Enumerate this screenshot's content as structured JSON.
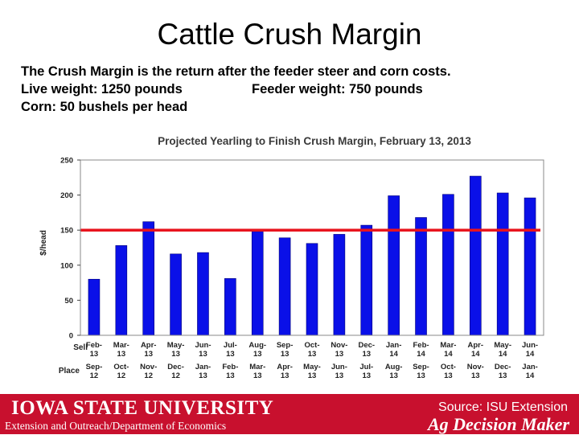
{
  "slide": {
    "title": "Cattle Crush Margin",
    "description_line1": "The Crush Margin is the return after the feeder steer and corn costs.",
    "description_live_weight": "Live weight:  1250 pounds",
    "description_feeder_weight": "Feeder weight:  750 pounds",
    "description_line3": "Corn:  50 bushels per head"
  },
  "chart_data": {
    "type": "bar",
    "title": "Projected Yearling to Finish Crush Margin, February 13, 2013",
    "ylabel": "$/head",
    "ylim": [
      0,
      250
    ],
    "yticks": [
      0,
      50,
      100,
      150,
      200,
      250
    ],
    "reference_line": 150,
    "row_labels": [
      "Sell",
      "Place"
    ],
    "categories": [
      "Feb-13",
      "Mar-13",
      "Apr-13",
      "May-13",
      "Jun-13",
      "Jul-13",
      "Aug-13",
      "Sep-13",
      "Oct-13",
      "Nov-13",
      "Dec-13",
      "Jan-14",
      "Feb-14",
      "Mar-14",
      "Apr-14",
      "May-14",
      "Jun-14"
    ],
    "place_categories": [
      "Sep-12",
      "Oct-12",
      "Nov-12",
      "Dec-12",
      "Jan-13",
      "Feb-13",
      "Mar-13",
      "Apr-13",
      "May-13",
      "Jun-13",
      "Jul-13",
      "Aug-13",
      "Sep-13",
      "Oct-13",
      "Nov-13",
      "Dec-13",
      "Jan-14"
    ],
    "values": [
      80,
      128,
      162,
      116,
      118,
      81,
      148,
      139,
      131,
      144,
      157,
      199,
      168,
      201,
      227,
      203,
      196
    ],
    "colors": {
      "bar": "#0a10e8",
      "bar_edge": "#00007a",
      "reference_line": "#e8141e",
      "title": "#3a3a3a"
    }
  },
  "footer": {
    "university": "Iowa State University",
    "department": "Extension and Outreach/Department of Economics",
    "source": "Source: ISU Extension",
    "brand": "Ag Decision Maker",
    "color": "#c8102e"
  }
}
